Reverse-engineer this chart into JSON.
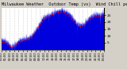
{
  "title": "Milwaukee Weather  Outdoor Temp (vs)  Wind Chill per Minute (Last 24 Hours)",
  "bg_color": "#d4d0c8",
  "plot_bg_color": "#ffffff",
  "bar_color": "#0000dd",
  "line_color": "#ff0000",
  "ylim": [
    0,
    30
  ],
  "yticks": [
    5,
    10,
    15,
    20,
    25
  ],
  "num_points": 1440,
  "grid_color": "#888888",
  "title_fontsize": 3.8,
  "tick_fontsize": 3.2,
  "num_xticks": 25
}
